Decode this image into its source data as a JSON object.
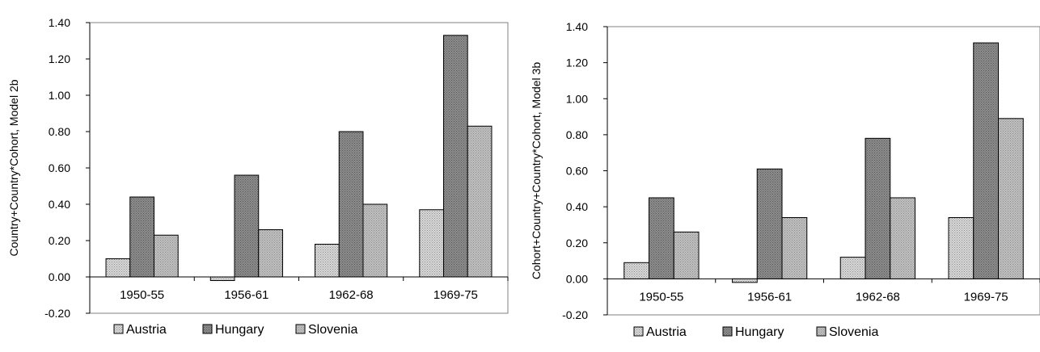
{
  "chart_data": [
    {
      "type": "bar",
      "title": "",
      "xlabel": "",
      "ylabel": "Country+Country*Cohort, Model 2b",
      "ylim": [
        -0.2,
        1.4
      ],
      "yticks": [
        "1.40",
        "1.20",
        "1.00",
        "0.80",
        "0.60",
        "0.40",
        "0.20",
        "0.00",
        "-0.20"
      ],
      "grid": false,
      "legend": "bottom",
      "categories": [
        "1950-55",
        "1956-61",
        "1962-68",
        "1969-75"
      ],
      "series": [
        {
          "name": "Austria",
          "values": [
            0.1,
            -0.02,
            0.18,
            0.37
          ],
          "color": "#d9d9d9"
        },
        {
          "name": "Hungary",
          "values": [
            0.44,
            0.56,
            0.8,
            1.33
          ],
          "color": "#8c8c8c"
        },
        {
          "name": "Slovenia",
          "values": [
            0.23,
            0.26,
            0.4,
            0.83
          ],
          "color": "#bfbfbf"
        }
      ]
    },
    {
      "type": "bar",
      "title": "",
      "xlabel": "",
      "ylabel": "Cohort+Country+Country*Cohort, Model 3b",
      "ylim": [
        -0.2,
        1.4
      ],
      "yticks": [
        "1.40",
        "1.20",
        "1.00",
        "0.80",
        "0.60",
        "0.40",
        "0.20",
        "0.00",
        "-0.20"
      ],
      "grid": false,
      "legend": "bottom",
      "categories": [
        "1950-55",
        "1956-61",
        "1962-68",
        "1969-75"
      ],
      "series": [
        {
          "name": "Austria",
          "values": [
            0.09,
            -0.02,
            0.12,
            0.34
          ],
          "color": "#d9d9d9"
        },
        {
          "name": "Hungary",
          "values": [
            0.45,
            0.61,
            0.78,
            1.31
          ],
          "color": "#8c8c8c"
        },
        {
          "name": "Slovenia",
          "values": [
            0.26,
            0.34,
            0.45,
            0.89
          ],
          "color": "#bfbfbf"
        }
      ]
    }
  ]
}
